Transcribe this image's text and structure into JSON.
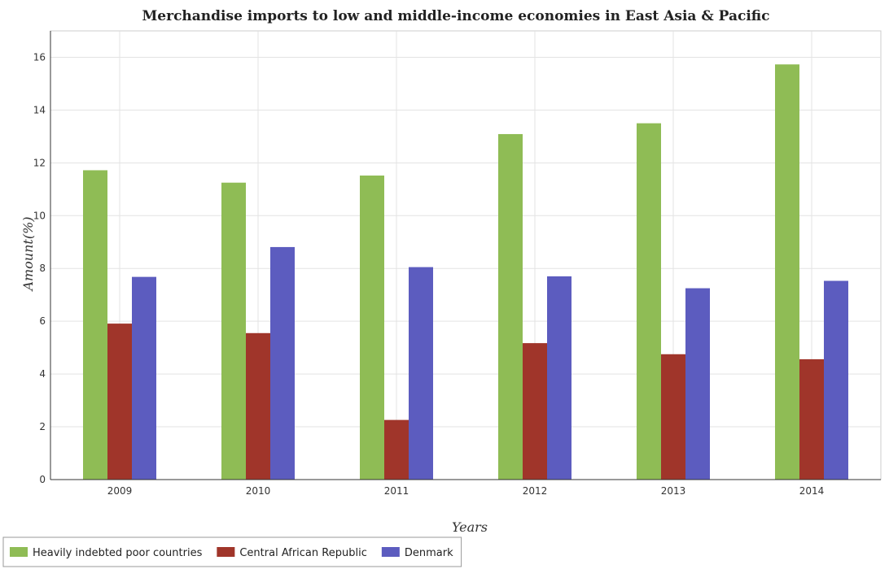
{
  "chart_data": {
    "type": "bar",
    "title": "Merchandise imports to low and middle-income economies in East Asia & Pacific",
    "xlabel": "Years",
    "ylabel": "Amount(%)",
    "categories": [
      "2009",
      "2010",
      "2011",
      "2012",
      "2013",
      "2014"
    ],
    "series": [
      {
        "name": "Heavily indebted poor countries",
        "color": "#8fbc55",
        "values": [
          11.72,
          11.25,
          11.52,
          13.09,
          13.5,
          15.73
        ]
      },
      {
        "name": "Central African Republic",
        "color": "#a0352a",
        "values": [
          5.91,
          5.55,
          2.26,
          5.17,
          4.75,
          4.56
        ]
      },
      {
        "name": "Denmark",
        "color": "#5c5cbf",
        "values": [
          7.68,
          8.81,
          8.05,
          7.7,
          7.25,
          7.53
        ]
      }
    ],
    "ylim": [
      0,
      17
    ],
    "yticks": [
      0,
      2,
      4,
      6,
      8,
      10,
      12,
      14,
      16
    ],
    "grid": true,
    "legend_position": "bottom-left"
  }
}
